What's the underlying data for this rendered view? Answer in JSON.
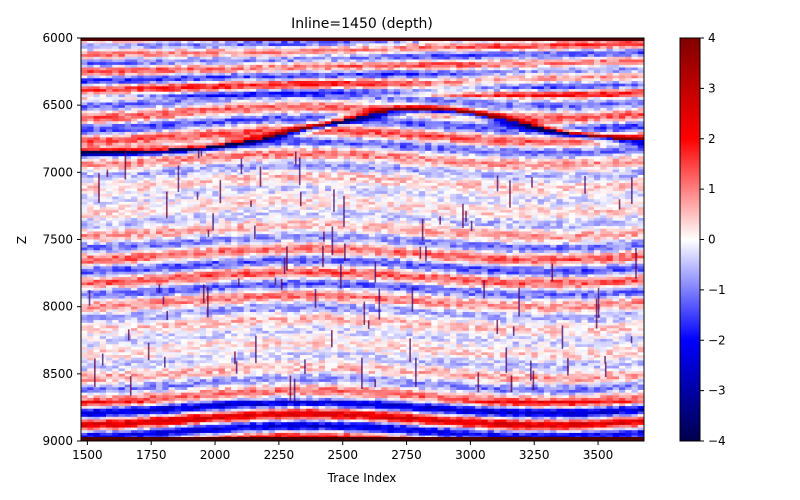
{
  "chart_data": {
    "type": "heatmap",
    "title": "Inline=1450 (depth)",
    "xlabel": "Trace Index",
    "ylabel": "Z",
    "xlim": [
      1475,
      3680
    ],
    "ylim": [
      6000,
      9000
    ],
    "y_inverted": true,
    "x_ticks": [
      1500,
      1750,
      2000,
      2250,
      2500,
      2750,
      3000,
      3250,
      3500
    ],
    "y_ticks": [
      6000,
      6500,
      7000,
      7500,
      8000,
      8500,
      9000
    ],
    "colormap": "seismic",
    "colorbar": {
      "range": [
        -4,
        4
      ],
      "ticks": [
        4,
        3,
        2,
        1,
        0,
        -1,
        -2,
        -3,
        -4
      ],
      "tick_labels": [
        "4",
        "3",
        "2",
        "1",
        "0",
        "−1",
        "−2",
        "−3",
        "−4"
      ],
      "colors": {
        "low": "#00004c",
        "mid_low": "#0000ff",
        "center": "#ffffff",
        "mid_high": "#ff0000",
        "high": "#800000"
      }
    },
    "grid": false
  }
}
